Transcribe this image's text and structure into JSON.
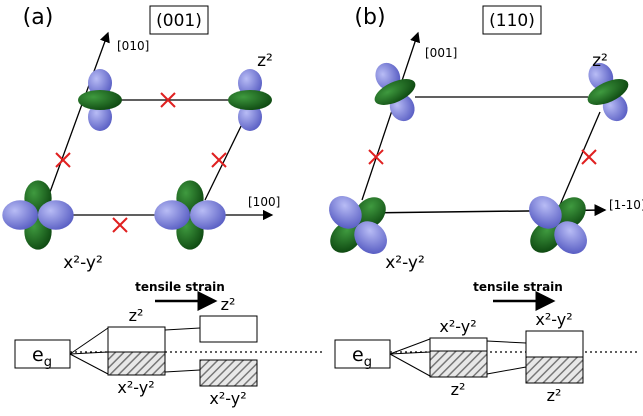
{
  "panel_a": {
    "label": "(a)",
    "plane": "(001)",
    "axis_vertical": "[010]",
    "axis_horizontal": "[100]",
    "orbital_top": "z²",
    "orbital_bottom": "x²-y²",
    "energy": {
      "eg": {
        "main": "e",
        "sub": "g"
      },
      "strain": "tensile strain",
      "left_upper": "z²",
      "left_lower": "x²-y²",
      "right_upper": "z²",
      "right_lower": "x²-y²"
    }
  },
  "panel_b": {
    "label": "(b)",
    "plane": "(110)",
    "axis_vertical": "[001]",
    "axis_horizontal": "[1-10]",
    "orbital_top": "z²",
    "orbital_bottom": "x²-y²",
    "energy": {
      "eg": {
        "main": "e",
        "sub": "g"
      },
      "strain": "tensile strain",
      "left_upper": "x²-y²",
      "left_lower": "z²",
      "right_upper": "x²-y²",
      "right_lower": "z²"
    }
  }
}
